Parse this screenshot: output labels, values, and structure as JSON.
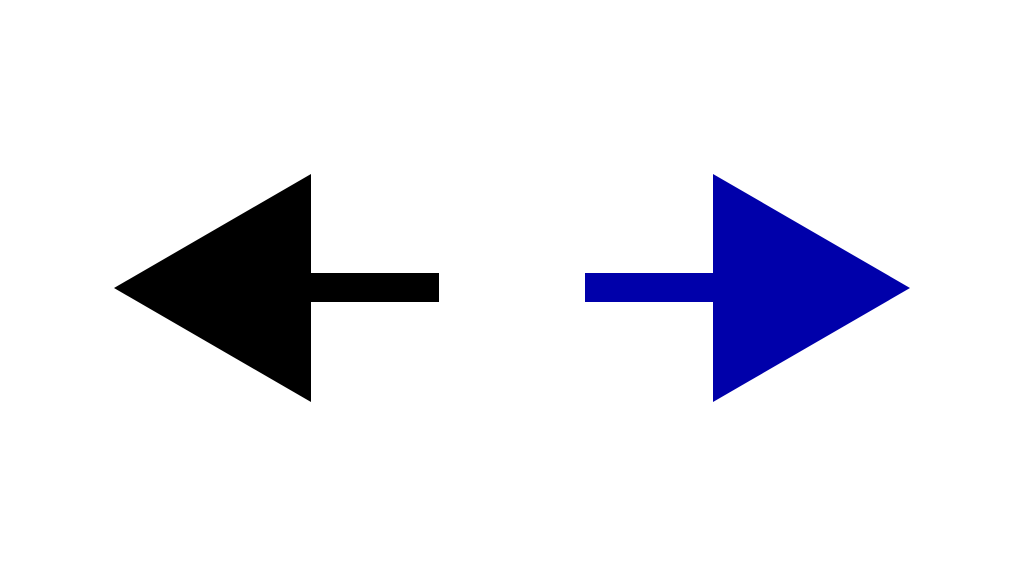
{
  "background_color": "#ffffff",
  "arrows": [
    {
      "name": "left-arrow",
      "direction": "left",
      "icon": "arrow-left-icon",
      "color": "#000000"
    },
    {
      "name": "right-arrow",
      "direction": "right",
      "icon": "arrow-right-icon",
      "color": "#0000aa"
    }
  ]
}
